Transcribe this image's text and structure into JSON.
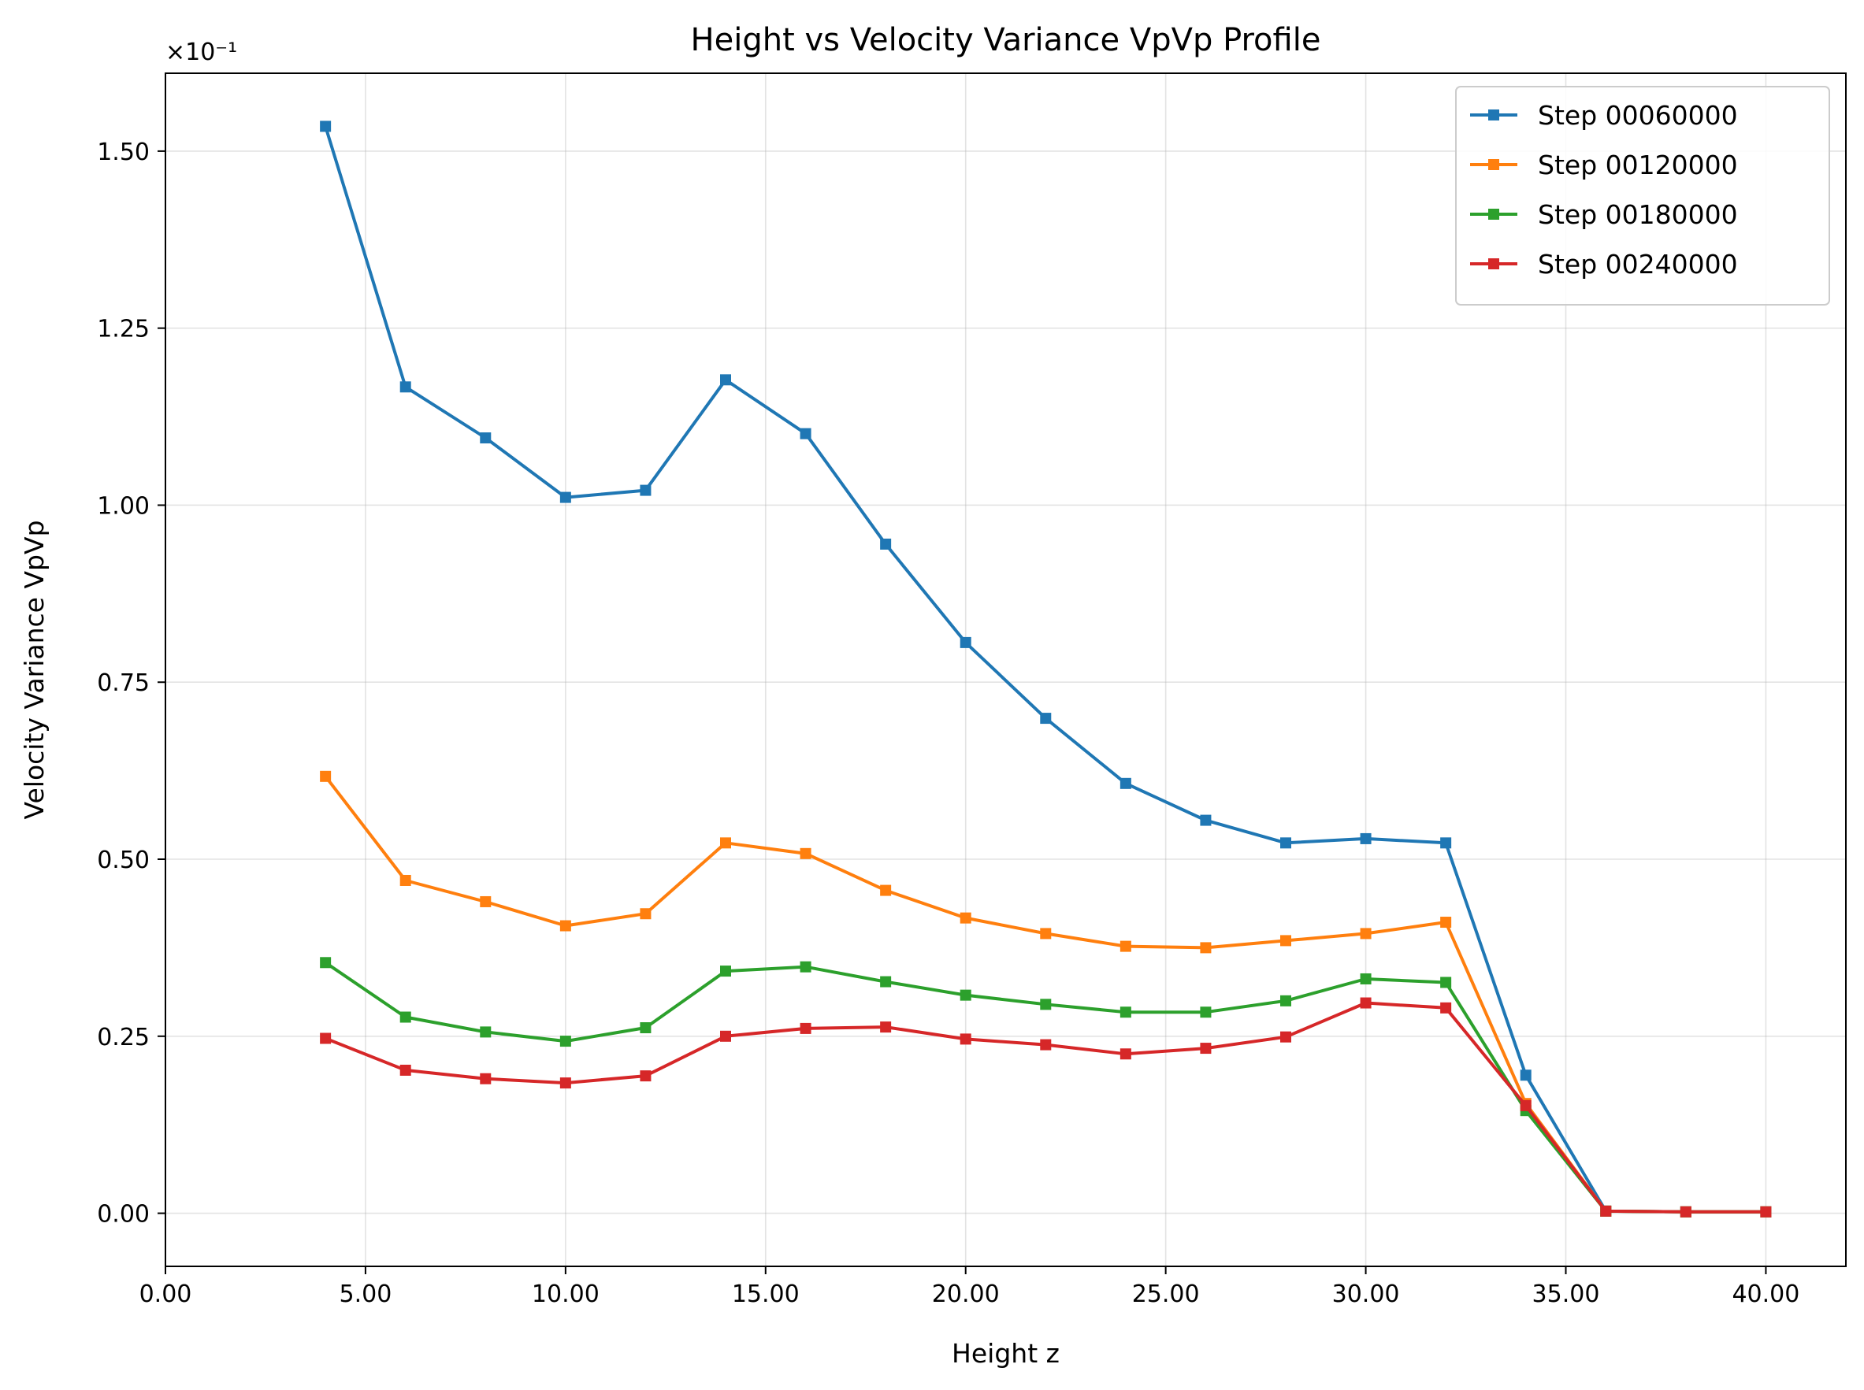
{
  "chart_data": {
    "type": "line",
    "title": "Height vs Velocity Variance VpVp Profile",
    "xlabel": "Height z",
    "ylabel": "Velocity Variance VpVp",
    "y_offset_text": "×10⁻¹",
    "xlim": [
      0,
      42
    ],
    "ylim": [
      -0.075,
      1.61
    ],
    "x_ticks": [
      0,
      5,
      10,
      15,
      20,
      25,
      30,
      35,
      40
    ],
    "x_tick_labels": [
      "0.00",
      "5.00",
      "10.00",
      "15.00",
      "20.00",
      "25.00",
      "30.00",
      "35.00",
      "40.00"
    ],
    "y_ticks": [
      0,
      0.25,
      0.5,
      0.75,
      1.0,
      1.25,
      1.5
    ],
    "y_tick_labels": [
      "0.00",
      "0.25",
      "0.50",
      "0.75",
      "1.00",
      "1.25",
      "1.50"
    ],
    "grid": true,
    "legend_position": "top-right",
    "series": [
      {
        "name": "Step 00060000",
        "color": "#1f77b4",
        "x": [
          4,
          6,
          8,
          10,
          12,
          14,
          16,
          18,
          20,
          22,
          24,
          26,
          28,
          30,
          32,
          34,
          36,
          38,
          40
        ],
        "y": [
          1.535,
          1.167,
          1.095,
          1.011,
          1.021,
          1.177,
          1.101,
          0.945,
          0.806,
          0.699,
          0.607,
          0.555,
          0.523,
          0.529,
          0.523,
          0.195,
          0.003,
          0.002,
          0.002
        ]
      },
      {
        "name": "Step 00120000",
        "color": "#ff7f0e",
        "x": [
          4,
          6,
          8,
          10,
          12,
          14,
          16,
          18,
          20,
          22,
          24,
          26,
          28,
          30,
          32,
          34,
          36,
          38,
          40
        ],
        "y": [
          0.617,
          0.47,
          0.44,
          0.406,
          0.423,
          0.523,
          0.508,
          0.456,
          0.417,
          0.395,
          0.377,
          0.375,
          0.385,
          0.395,
          0.411,
          0.155,
          0.003,
          0.002,
          0.002
        ]
      },
      {
        "name": "Step 00180000",
        "color": "#2ca02c",
        "x": [
          4,
          6,
          8,
          10,
          12,
          14,
          16,
          18,
          20,
          22,
          24,
          26,
          28,
          30,
          32,
          34,
          36,
          38,
          40
        ],
        "y": [
          0.354,
          0.277,
          0.256,
          0.243,
          0.262,
          0.342,
          0.348,
          0.327,
          0.308,
          0.295,
          0.284,
          0.284,
          0.3,
          0.331,
          0.326,
          0.145,
          0.003,
          0.002,
          0.002
        ]
      },
      {
        "name": "Step 00240000",
        "color": "#d62728",
        "x": [
          4,
          6,
          8,
          10,
          12,
          14,
          16,
          18,
          20,
          22,
          24,
          26,
          28,
          30,
          32,
          34,
          36,
          38,
          40
        ],
        "y": [
          0.247,
          0.202,
          0.19,
          0.184,
          0.194,
          0.25,
          0.261,
          0.263,
          0.246,
          0.238,
          0.225,
          0.233,
          0.249,
          0.297,
          0.29,
          0.152,
          0.003,
          0.002,
          0.002
        ]
      }
    ]
  }
}
